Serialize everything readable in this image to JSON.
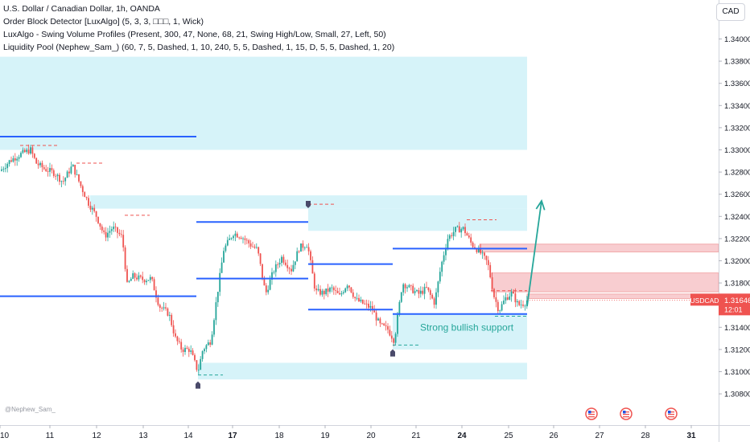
{
  "chart_data": {
    "type": "candlestick",
    "symbol_title": "U.S. Dollar / Canadian Dollar, 1h, OANDA",
    "indicators": [
      "Order Block Detector [LuxAlgo] (5, 3, 3, □□□, 1, Wick)",
      "LuxAlgo - Swing Volume Profiles (Present, 300, 47, None, 68, 21, Swing High/Low, Small, 27, Left, 50)",
      "Liquidity Pool (Nephew_Sam_) (60, 7, 5, Dashed, 1, 10, 240, 5, 5, Dashed, 1, 15, D, 5, 5, Dashed, 1, 20)"
    ],
    "currency": "CAD",
    "price_ticks": [
      "1.34000",
      "1.33800",
      "1.33600",
      "1.33400",
      "1.33200",
      "1.33000",
      "1.32800",
      "1.32600",
      "1.32400",
      "1.32200",
      "1.32000",
      "1.31800",
      "1.31600",
      "1.31400",
      "1.31200",
      "1.31000",
      "1.30800"
    ],
    "date_ticks": [
      {
        "label": "10",
        "t": 0
      },
      {
        "label": "11",
        "t": 62
      },
      {
        "label": "12",
        "t": 120
      },
      {
        "label": "13",
        "t": 178
      },
      {
        "label": "14",
        "t": 234
      },
      {
        "label": "17",
        "t": 289
      },
      {
        "label": "18",
        "t": 347
      },
      {
        "label": "19",
        "t": 404
      },
      {
        "label": "20",
        "t": 461
      },
      {
        "label": "21",
        "t": 517
      },
      {
        "label": "24",
        "t": 574
      },
      {
        "label": "25",
        "t": 632
      },
      {
        "label": "26",
        "t": 688
      },
      {
        "label": "27",
        "t": 745
      },
      {
        "label": "28",
        "t": 802
      },
      {
        "label": "31",
        "t": 859
      }
    ],
    "price_path": [
      [
        0,
        1.3281
      ],
      [
        12,
        1.329
      ],
      [
        25,
        1.3296
      ],
      [
        38,
        1.33
      ],
      [
        45,
        1.3288
      ],
      [
        55,
        1.3283
      ],
      [
        68,
        1.3279
      ],
      [
        78,
        1.3271
      ],
      [
        90,
        1.3286
      ],
      [
        100,
        1.3268
      ],
      [
        110,
        1.3252
      ],
      [
        120,
        1.324
      ],
      [
        130,
        1.3222
      ],
      [
        140,
        1.323
      ],
      [
        152,
        1.3221
      ],
      [
        158,
        1.3178
      ],
      [
        165,
        1.3186
      ],
      [
        178,
        1.3183
      ],
      [
        188,
        1.3184
      ],
      [
        198,
        1.3159
      ],
      [
        210,
        1.3152
      ],
      [
        218,
        1.313
      ],
      [
        226,
        1.312
      ],
      [
        236,
        1.312
      ],
      [
        246,
        1.31
      ],
      [
        252,
        1.312
      ],
      [
        262,
        1.3128
      ],
      [
        270,
        1.317
      ],
      [
        278,
        1.321
      ],
      [
        290,
        1.3225
      ],
      [
        300,
        1.3222
      ],
      [
        312,
        1.3214
      ],
      [
        320,
        1.321
      ],
      [
        330,
        1.317
      ],
      [
        340,
        1.3191
      ],
      [
        350,
        1.3203
      ],
      [
        362,
        1.3192
      ],
      [
        372,
        1.3212
      ],
      [
        382,
        1.3215
      ],
      [
        392,
        1.3172
      ],
      [
        402,
        1.3171
      ],
      [
        412,
        1.3175
      ],
      [
        422,
        1.3168
      ],
      [
        432,
        1.318
      ],
      [
        442,
        1.3165
      ],
      [
        452,
        1.3161
      ],
      [
        462,
        1.3157
      ],
      [
        472,
        1.3142
      ],
      [
        482,
        1.3138
      ],
      [
        490,
        1.3128
      ],
      [
        500,
        1.318
      ],
      [
        510,
        1.3175
      ],
      [
        520,
        1.317
      ],
      [
        530,
        1.3175
      ],
      [
        540,
        1.3162
      ],
      [
        548,
        1.3195
      ],
      [
        556,
        1.322
      ],
      [
        566,
        1.3228
      ],
      [
        576,
        1.3229
      ],
      [
        586,
        1.3215
      ],
      [
        596,
        1.3208
      ],
      [
        606,
        1.3198
      ],
      [
        614,
        1.3168
      ],
      [
        620,
        1.3155
      ],
      [
        628,
        1.3166
      ],
      [
        636,
        1.3171
      ],
      [
        644,
        1.316
      ],
      [
        652,
        1.3162
      ],
      [
        655,
        1.31646
      ]
    ],
    "blue_levels": [
      {
        "x1": 0,
        "x2": 244,
        "price": 1.3312
      },
      {
        "x1": 0,
        "x2": 244,
        "price": 1.3168
      },
      {
        "x1": 244,
        "x2": 383,
        "price": 1.3235
      },
      {
        "x1": 244,
        "x2": 383,
        "price": 1.3184
      },
      {
        "x1": 383,
        "x2": 488,
        "price": 1.3197
      },
      {
        "x1": 383,
        "x2": 488,
        "price": 1.3156
      },
      {
        "x1": 488,
        "x2": 655,
        "price": 1.3211
      },
      {
        "x1": 488,
        "x2": 655,
        "price": 1.3152
      }
    ],
    "dashed_highs": [
      {
        "x1": 25,
        "x2": 74,
        "price": 1.3304
      },
      {
        "x1": 95,
        "x2": 130,
        "price": 1.3288
      },
      {
        "x1": 155,
        "x2": 186,
        "price": 1.3241
      },
      {
        "x1": 383,
        "x2": 415,
        "price": 1.3251
      },
      {
        "x1": 580,
        "x2": 617,
        "price": 1.3237
      },
      {
        "x1": 610,
        "x2": 655,
        "price": 1.3173
      }
    ],
    "dashed_lows": [
      {
        "x1": 246,
        "x2": 277,
        "price": 1.3097
      },
      {
        "x1": 488,
        "x2": 522,
        "price": 1.3124
      },
      {
        "x1": 615,
        "x2": 655,
        "price": 1.315
      }
    ],
    "cyan_zones": [
      {
        "x1": 0,
        "x2": 655,
        "p_top": 1.3384,
        "p_bot": 1.33
      },
      {
        "x1": 112,
        "x2": 655,
        "p_top": 1.3259,
        "p_bot": 1.3247
      },
      {
        "x1": 383,
        "x2": 655,
        "p_top": 1.3247,
        "p_bot": 1.3227
      },
      {
        "x1": 246,
        "x2": 655,
        "p_top": 1.3108,
        "p_bot": 1.3093
      },
      {
        "x1": 488,
        "x2": 655,
        "p_top": 1.3152,
        "p_bot": 1.312
      }
    ],
    "red_zones": [
      {
        "x1": 596,
        "x2": 893,
        "p_top": 1.3215,
        "p_bot": 1.3208
      },
      {
        "x1": 611,
        "x2": 893,
        "p_top": 1.3189,
        "p_bot": 1.3172
      },
      {
        "x1": 655,
        "x2": 893,
        "p_top": 1.317,
        "p_bot": 1.3166
      }
    ],
    "markers": [
      {
        "t": 383,
        "price": 1.3254,
        "dir": "up"
      },
      {
        "t": 246,
        "price": 1.3089,
        "dir": "down"
      },
      {
        "t": 488,
        "price": 1.3118,
        "dir": "down"
      }
    ],
    "arrow": {
      "t1": 655,
      "p1": 1.3159,
      "t2": 673,
      "p2": 1.3254
    },
    "annotation": "Strong bullish support",
    "current_price": {
      "symbol": "USDCAD",
      "price": "1.31646",
      "countdown": "12:01"
    },
    "event_icons": [
      {
        "t": 735
      },
      {
        "t": 778
      },
      {
        "t": 834
      }
    ],
    "watermark": "@Nephew_Sam_",
    "colors": {
      "up": "#26a69a",
      "down": "#ef5350",
      "level": "#2962ff",
      "zone": "#d6f3f9",
      "red_zone": "#f8cdd0",
      "arrow": "#26a69a",
      "label_bg": "#ef5350"
    }
  }
}
